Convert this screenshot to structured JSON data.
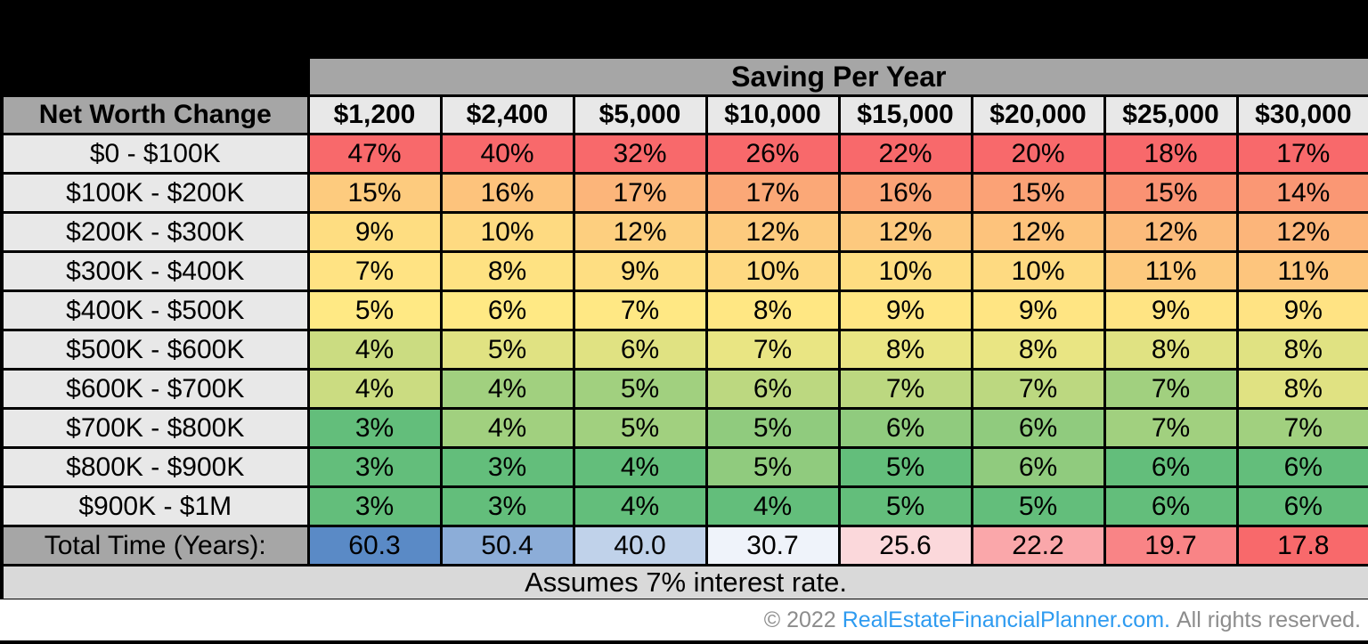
{
  "chart_data": {
    "type": "heatmap",
    "title": "Saving Per Year",
    "row_label_header": "Net Worth Change",
    "columns": [
      "$1,200",
      "$2,400",
      "$5,000",
      "$10,000",
      "$15,000",
      "$20,000",
      "$25,000",
      "$30,000"
    ],
    "rows": [
      "$0 - $100K",
      "$100K - $200K",
      "$200K - $300K",
      "$300K - $400K",
      "$400K - $500K",
      "$500K - $600K",
      "$600K - $700K",
      "$700K - $800K",
      "$800K - $900K",
      "$900K - $1M"
    ],
    "values_percent": [
      [
        47,
        40,
        32,
        26,
        22,
        20,
        18,
        17
      ],
      [
        15,
        16,
        17,
        17,
        16,
        15,
        15,
        14
      ],
      [
        9,
        10,
        12,
        12,
        12,
        12,
        12,
        12
      ],
      [
        7,
        8,
        9,
        10,
        10,
        10,
        11,
        11
      ],
      [
        5,
        6,
        7,
        8,
        9,
        9,
        9,
        9
      ],
      [
        4,
        5,
        6,
        7,
        8,
        8,
        8,
        8
      ],
      [
        4,
        4,
        5,
        6,
        7,
        7,
        7,
        8
      ],
      [
        3,
        4,
        5,
        5,
        6,
        6,
        7,
        7
      ],
      [
        3,
        3,
        4,
        5,
        5,
        6,
        6,
        6
      ],
      [
        3,
        3,
        4,
        4,
        5,
        5,
        6,
        6
      ]
    ],
    "value_suffix": "%",
    "total_row": {
      "label": "Total Time (Years):",
      "values": [
        "60.3",
        "50.4",
        "40.0",
        "30.7",
        "25.6",
        "22.2",
        "19.7",
        "17.8"
      ]
    },
    "footnote": "Assumes 7% interest rate.",
    "color_scale": {
      "percent": {
        "low": "#63BE7B",
        "mid": "#FFEB84",
        "high": "#F8696B",
        "applied": "per-column"
      },
      "total": {
        "low": "#F8696B",
        "mid": "#FCFCFF",
        "high": "#5A8AC6",
        "applied": "per-row"
      }
    },
    "grid_color": "#000000",
    "band_bg": "#A6A6A6",
    "subheader_bg": "#E8E8E8",
    "footnote_bg": "#D9D9D9"
  },
  "footer": {
    "prefix": "© 2022",
    "link": "RealEstateFinancialPlanner.com.",
    "suffix": "All rights reserved."
  }
}
